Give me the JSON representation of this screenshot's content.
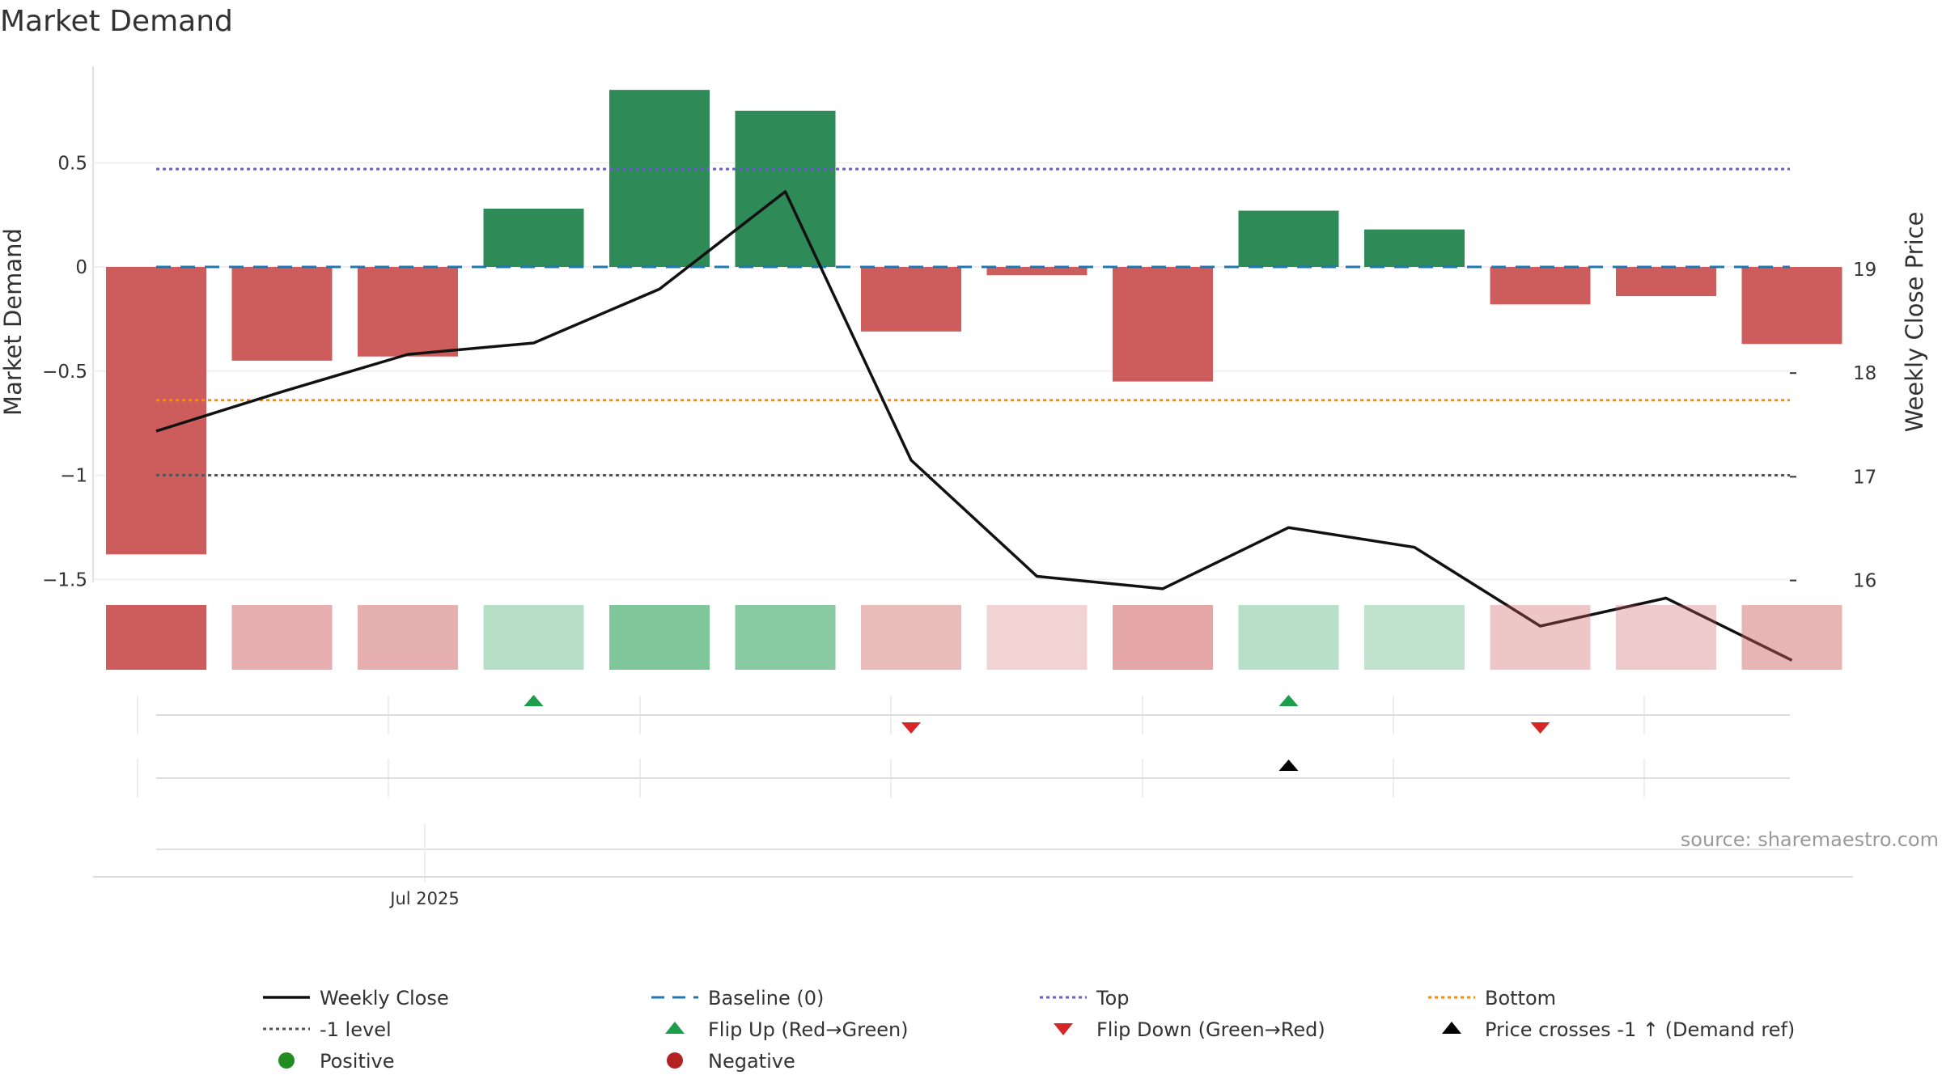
{
  "chart_data": {
    "type": "bar",
    "title": "Market Demand",
    "ylabel_left": "Market Demand",
    "ylabel_right": "Weekly Close Price",
    "left_ticks": [
      0.5,
      0,
      -0.5,
      -1,
      -1.5
    ],
    "left_tick_labels": [
      "0.5",
      "0",
      "−0.5",
      "−1",
      "−1.5"
    ],
    "right_ticks": [
      19,
      18,
      17,
      16
    ],
    "right_tick_labels": [
      "19",
      "18",
      "17",
      "16"
    ],
    "ylim_left": [
      -1.5,
      0.97
    ],
    "ylim_right": [
      15.0,
      19.98
    ],
    "x_tick_label": "Jul 2025",
    "n_weeks": 14,
    "demand": [
      -1.38,
      -0.45,
      -0.43,
      0.28,
      0.85,
      0.75,
      -0.31,
      -0.04,
      -0.55,
      0.27,
      0.18,
      -0.18,
      -0.14,
      -0.37
    ],
    "weekly_close": [
      17.44,
      17.82,
      18.18,
      18.29,
      18.81,
      19.75,
      17.16,
      16.04,
      15.92,
      16.51,
      16.32,
      15.56,
      15.83,
      15.23
    ],
    "reference_lines": {
      "baseline": 0,
      "top": 0.47,
      "bottom": -0.64,
      "minus_one": -1
    },
    "flip_up_weeks": [
      3,
      9
    ],
    "flip_down_weeks": [
      6,
      11
    ],
    "price_cross_weeks": [
      9
    ],
    "colors": {
      "positive": "#2e8b57",
      "negative": "#cd5c5c",
      "price": "#111111",
      "baseline": "#1f77b4",
      "top": "#6a5acd",
      "bottom": "#ff8c00",
      "minus_one": "#555555",
      "flip_up": "#1e9e4a",
      "flip_down": "#d62728",
      "cross": "#000000"
    },
    "legend": [
      {
        "label": "Weekly Close",
        "icon": "line-icon"
      },
      {
        "label": "Baseline (0)",
        "icon": "dash-icon"
      },
      {
        "label": "Top",
        "icon": "dot-line-icon"
      },
      {
        "label": "Bottom",
        "icon": "dot-line-icon"
      },
      {
        "label": "-1 level",
        "icon": "dot-line-icon"
      },
      {
        "label": "Flip Up (Red→Green)",
        "icon": "triangle-up-icon"
      },
      {
        "label": "Flip Down (Green→Red)",
        "icon": "triangle-down-icon"
      },
      {
        "label": "Price crosses -1 ↑ (Demand ref)",
        "icon": "triangle-up-icon"
      },
      {
        "label": "Positive",
        "icon": "circle-icon"
      },
      {
        "label": "Negative",
        "icon": "circle-icon"
      }
    ],
    "source": "source: sharemaestro.com"
  }
}
